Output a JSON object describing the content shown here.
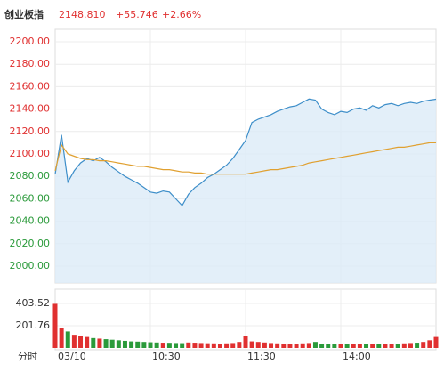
{
  "header": {
    "name": "创业板指",
    "price": "2148.810",
    "change": "+55.746",
    "pct": "+2.66%"
  },
  "chart_data": [
    {
      "type": "line",
      "x_label": "分时",
      "categories": [
        "03/10",
        null,
        null,
        null,
        null,
        null,
        null,
        null,
        null,
        null,
        null,
        null,
        null,
        null,
        null,
        "10:30",
        null,
        null,
        null,
        null,
        null,
        null,
        null,
        null,
        null,
        null,
        null,
        null,
        null,
        null,
        "11:30",
        null,
        null,
        null,
        null,
        null,
        null,
        null,
        null,
        null,
        null,
        null,
        null,
        null,
        null,
        "14:00",
        null,
        null,
        null,
        null,
        null,
        null,
        null,
        null,
        null,
        null,
        null,
        null,
        null,
        null,
        null
      ],
      "series": [
        {
          "name": "price",
          "color": "#3d8ec9",
          "values": [
            2082,
            2117,
            2075,
            2085,
            2092,
            2096,
            2094,
            2097,
            2093,
            2088,
            2084,
            2080,
            2077,
            2074,
            2070,
            2066,
            2065,
            2067,
            2066,
            2060,
            2054,
            2064,
            2070,
            2074,
            2079,
            2082,
            2086,
            2090,
            2096,
            2104,
            2112,
            2128,
            2131,
            2133,
            2135,
            2138,
            2140,
            2142,
            2143,
            2146,
            2149,
            2148,
            2140,
            2137,
            2135,
            2138,
            2137,
            2140,
            2141,
            2139,
            2143,
            2141,
            2144,
            2145,
            2143,
            2145,
            2146,
            2145,
            2147,
            2148,
            2148.81
          ]
        },
        {
          "name": "average",
          "color": "#e0a030",
          "values": [
            2085,
            2108,
            2100,
            2098,
            2096,
            2095,
            2095,
            2094,
            2094,
            2093,
            2092,
            2091,
            2090,
            2089,
            2089,
            2088,
            2087,
            2086,
            2086,
            2085,
            2084,
            2084,
            2083,
            2083,
            2082,
            2082,
            2082,
            2082,
            2082,
            2082,
            2082,
            2083,
            2084,
            2085,
            2086,
            2086,
            2087,
            2088,
            2089,
            2090,
            2092,
            2093,
            2094,
            2095,
            2096,
            2097,
            2098,
            2099,
            2100,
            2101,
            2102,
            2103,
            2104,
            2105,
            2106,
            2106,
            2107,
            2108,
            2109,
            2110,
            2110
          ]
        }
      ],
      "ylim": [
        2000,
        2200
      ],
      "yticks": [
        {
          "value": 2000,
          "label": "2000.00"
        },
        {
          "value": 2020,
          "label": "2020.00"
        },
        {
          "value": 2040,
          "label": "2040.00"
        },
        {
          "value": 2060,
          "label": "2060.00"
        },
        {
          "value": 2080,
          "label": "2080.00"
        },
        {
          "value": 2100,
          "label": "2100.00"
        },
        {
          "value": 2120,
          "label": "2120.00"
        },
        {
          "value": 2140,
          "label": "2140.00"
        },
        {
          "value": 2160,
          "label": "2160.00"
        },
        {
          "value": 2180,
          "label": "2180.00"
        },
        {
          "value": 2200,
          "label": "2200.00"
        }
      ],
      "grid": true,
      "up_color": "#e03030",
      "down_color": "#2a9a3a",
      "fill_color": "#dcebf8"
    },
    {
      "type": "bar",
      "values": [
        400,
        180,
        150,
        120,
        110,
        100,
        90,
        85,
        80,
        75,
        70,
        65,
        60,
        58,
        55,
        52,
        50,
        48,
        47,
        45,
        44,
        50,
        48,
        45,
        43,
        42,
        40,
        42,
        45,
        55,
        110,
        60,
        55,
        50,
        45,
        42,
        40,
        38,
        40,
        42,
        45,
        55,
        40,
        38,
        36,
        35,
        34,
        33,
        35,
        34,
        33,
        35,
        36,
        38,
        40,
        42,
        45,
        48,
        55,
        70,
        100
      ],
      "ylim": [
        0,
        403.52
      ],
      "yticks": [
        403.52,
        201.76
      ],
      "grid": true
    }
  ]
}
